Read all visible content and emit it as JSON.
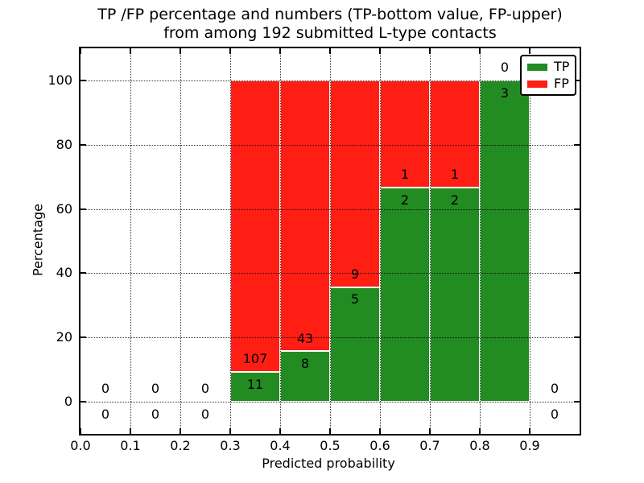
{
  "chart_data": {
    "type": "bar",
    "stacked": true,
    "title": "TP /FP percentage and numbers (TP-bottom value, FP-upper) from among 192 submitted L-type contacts",
    "title_line1": "TP /FP percentage and numbers (TP-bottom value, FP-upper)",
    "title_line2": "from among 192 submitted L-type contacts",
    "xlabel": "Predicted probability",
    "ylabel": "Percentage",
    "xlim": [
      0.0,
      1.0
    ],
    "ylim": [
      -10,
      110
    ],
    "x_ticks": [
      "0.0",
      "0.1",
      "0.2",
      "0.3",
      "0.4",
      "0.5",
      "0.6",
      "0.7",
      "0.8",
      "0.9"
    ],
    "y_ticks": [
      "0",
      "20",
      "40",
      "60",
      "80",
      "100"
    ],
    "grid": true,
    "grid_style": "dotted",
    "legend": {
      "position": "upper right",
      "entries": [
        {
          "label": "TP",
          "color": "#228b22"
        },
        {
          "label": "FP",
          "color": "#ff1e14"
        }
      ]
    },
    "bins": [
      {
        "range": [
          0.0,
          0.1
        ],
        "tp": 0,
        "fp": 0,
        "tp_pct": 0
      },
      {
        "range": [
          0.1,
          0.2
        ],
        "tp": 0,
        "fp": 0,
        "tp_pct": 0
      },
      {
        "range": [
          0.2,
          0.3
        ],
        "tp": 0,
        "fp": 0,
        "tp_pct": 0
      },
      {
        "range": [
          0.3,
          0.4
        ],
        "tp": 11,
        "fp": 107,
        "tp_pct": 9.3
      },
      {
        "range": [
          0.4,
          0.5
        ],
        "tp": 8,
        "fp": 43,
        "tp_pct": 15.7
      },
      {
        "range": [
          0.5,
          0.6
        ],
        "tp": 5,
        "fp": 9,
        "tp_pct": 35.7
      },
      {
        "range": [
          0.6,
          0.7
        ],
        "tp": 2,
        "fp": 1,
        "tp_pct": 66.7
      },
      {
        "range": [
          0.7,
          0.8
        ],
        "tp": 2,
        "fp": 1,
        "tp_pct": 66.7
      },
      {
        "range": [
          0.8,
          0.9
        ],
        "tp": 3,
        "fp": 0,
        "tp_pct": 100.0
      },
      {
        "range": [
          0.9,
          1.0
        ],
        "tp": 0,
        "fp": 0,
        "tp_pct": 0
      }
    ]
  }
}
